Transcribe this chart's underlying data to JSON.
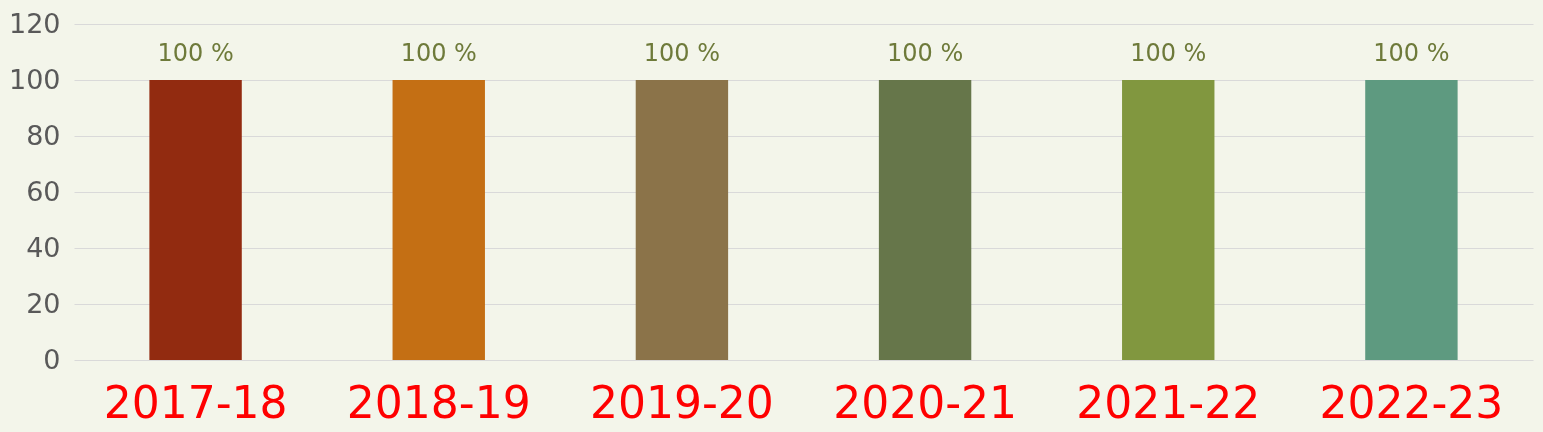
{
  "chart_data": {
    "type": "bar",
    "categories": [
      "2017-18",
      "2018-19",
      "2019-20",
      "2020-21",
      "2021-22",
      "2022-23"
    ],
    "values": [
      100,
      100,
      100,
      100,
      100,
      100
    ],
    "colors": [
      "#922b10",
      "#c46f14",
      "#8b7349",
      "#66764a",
      "#81973f",
      "#5e9a80"
    ],
    "value_labels": [
      "100 %",
      "100 %",
      "100 %",
      "100 %",
      "100 %",
      "100 %"
    ],
    "ylim": [
      0,
      120
    ],
    "yticks": [
      0,
      20,
      40,
      60,
      80,
      100,
      120
    ],
    "grid": "y"
  }
}
